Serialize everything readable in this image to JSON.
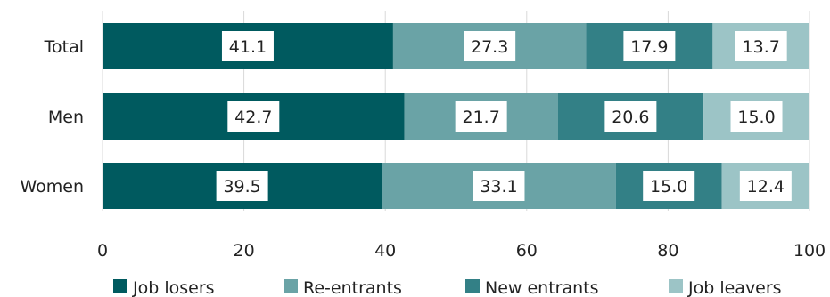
{
  "chart_data": {
    "type": "bar",
    "orientation": "horizontal",
    "stacked": true,
    "categories": [
      "Total",
      "Men",
      "Women"
    ],
    "series": [
      {
        "name": "Job losers",
        "values": [
          41.1,
          42.7,
          39.5
        ],
        "color": "#005a5f"
      },
      {
        "name": "Re-entrants",
        "values": [
          27.3,
          21.7,
          33.1
        ],
        "color": "#6aa3a6"
      },
      {
        "name": "New entrants",
        "values": [
          17.9,
          20.6,
          15.0
        ],
        "color": "#338086"
      },
      {
        "name": "Job leavers",
        "values": [
          13.7,
          15.0,
          12.4
        ],
        "color": "#9cc4c6"
      }
    ],
    "data_labels": [
      [
        "41.1",
        "27.3",
        "17.9",
        "13.7"
      ],
      [
        "42.7",
        "21.7",
        "20.6",
        "15.0"
      ],
      [
        "39.5",
        "33.1",
        "15.0",
        "12.4"
      ]
    ],
    "xlim": [
      0,
      100
    ],
    "xticks": [
      0,
      20,
      40,
      60,
      80,
      100
    ],
    "xtick_labels": [
      "0",
      "20",
      "40",
      "60",
      "80",
      "100"
    ],
    "grid": "vertical",
    "legend_position": "bottom"
  }
}
